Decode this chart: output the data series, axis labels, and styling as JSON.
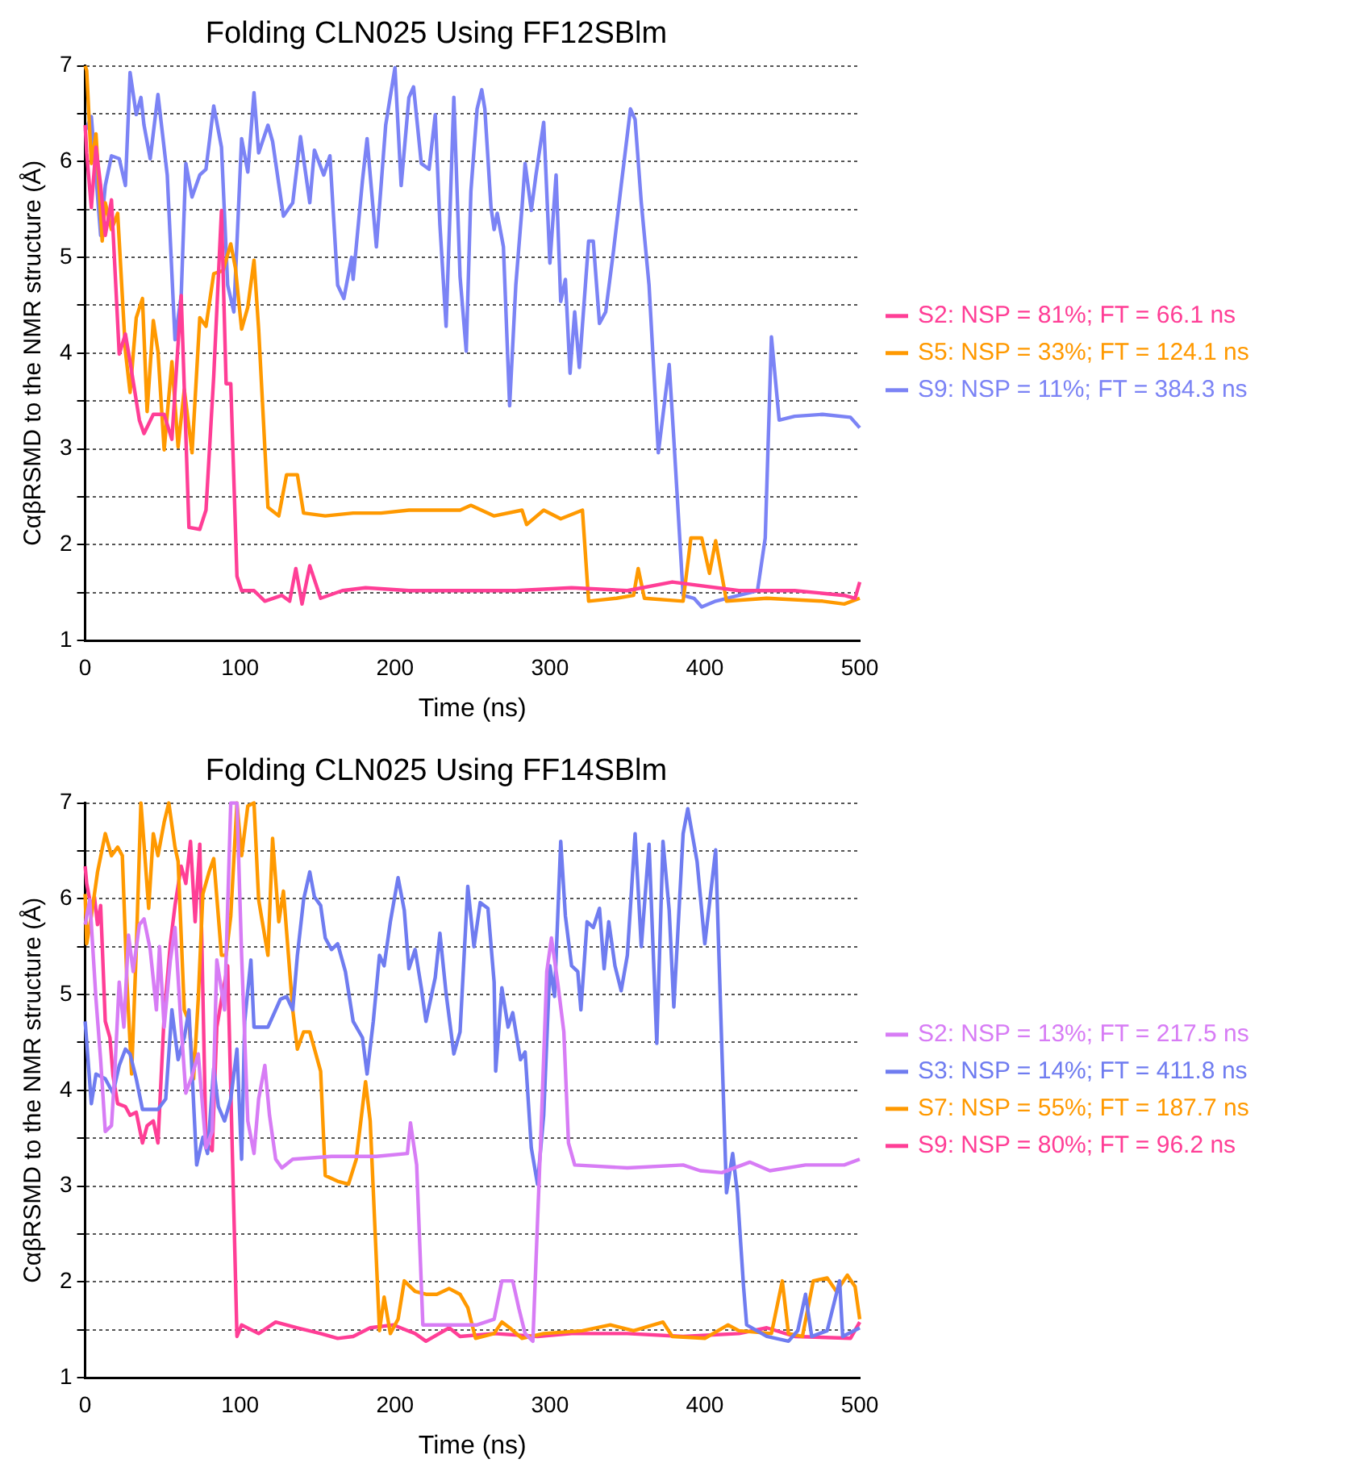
{
  "chart_data": [
    {
      "type": "line",
      "title": "Folding CLN025 Using FF12SBlm",
      "xlabel": "Time (ns)",
      "ylabel": "CαβRSMD to the NMR structure (Å)",
      "xlim": [
        0,
        500
      ],
      "xticks": [
        0,
        100,
        200,
        300,
        400,
        500
      ],
      "ylim": [
        1,
        7
      ],
      "yticks": [
        1,
        {
          "value": 1.5,
          "label": null
        },
        2,
        {
          "value": 2.5,
          "label": null
        },
        3,
        {
          "value": 3.5,
          "label": null
        },
        4,
        {
          "value": 4.5,
          "label": null
        },
        5,
        {
          "value": 5.5,
          "label": null
        },
        6,
        {
          "value": 6.5,
          "label": null
        },
        7
      ],
      "grid": "y",
      "legend": "right",
      "marker": "none",
      "line_style": "solid",
      "series": [
        {
          "name": "S2: NSP = 81%; FT = 66.1 ns",
          "color": "#ff3e96",
          "x": [
            0,
            1,
            4,
            7,
            10,
            13,
            17,
            22,
            26,
            29,
            35,
            38,
            44,
            51,
            56,
            62,
            67,
            74,
            78,
            83,
            88,
            91,
            94,
            98,
            101,
            109,
            116,
            127,
            132,
            136,
            140,
            145,
            152,
            166,
            181,
            209,
            245,
            278,
            314,
            350,
            379,
            422,
            458,
            490,
            497,
            500
          ],
          "values": [
            6.38,
            6.09,
            5.52,
            6.15,
            5.75,
            5.23,
            5.6,
            3.99,
            4.2,
            3.91,
            3.3,
            3.16,
            3.36,
            3.36,
            3.1,
            4.6,
            2.18,
            2.16,
            2.36,
            3.76,
            5.49,
            3.68,
            3.68,
            1.67,
            1.52,
            1.52,
            1.41,
            1.47,
            1.41,
            1.75,
            1.38,
            1.78,
            1.44,
            1.52,
            1.55,
            1.52,
            1.52,
            1.52,
            1.55,
            1.52,
            1.61,
            1.52,
            1.52,
            1.47,
            1.44,
            1.61
          ]
        },
        {
          "name": "S5: NSP = 33%; FT = 124.1 ns",
          "color": "#ff9900",
          "x": [
            0,
            1,
            4,
            7,
            11,
            13,
            17,
            21,
            26,
            29,
            33,
            37,
            40,
            44,
            47,
            51,
            56,
            60,
            64,
            69,
            74,
            78,
            83,
            89,
            94,
            97,
            101,
            105,
            109,
            112,
            118,
            125,
            130,
            137,
            141,
            155,
            173,
            191,
            209,
            227,
            242,
            249,
            264,
            282,
            285,
            296,
            307,
            321,
            325,
            343,
            354,
            357,
            361,
            386,
            391,
            398,
            403,
            407,
            414,
            440,
            476,
            490,
            500
          ],
          "values": [
            7,
            6.95,
            5.98,
            6.29,
            5.17,
            5.57,
            5.29,
            5.46,
            4.02,
            3.59,
            4.37,
            4.57,
            3.39,
            4.34,
            4.02,
            2.99,
            3.91,
            3.02,
            3.62,
            2.96,
            4.37,
            4.28,
            4.83,
            4.86,
            5.14,
            4.89,
            4.25,
            4.48,
            4.97,
            4.25,
            2.39,
            2.3,
            2.73,
            2.73,
            2.33,
            2.3,
            2.33,
            2.33,
            2.36,
            2.36,
            2.36,
            2.41,
            2.3,
            2.36,
            2.21,
            2.36,
            2.27,
            2.36,
            1.41,
            1.44,
            1.47,
            1.75,
            1.44,
            1.41,
            2.07,
            2.07,
            1.7,
            2.04,
            1.41,
            1.44,
            1.41,
            1.38,
            1.44
          ]
        },
        {
          "name": "S9: NSP = 11%; FT = 384.3 ns",
          "color": "#7b83f5",
          "x": [
            0,
            4,
            10,
            13,
            17,
            22,
            26,
            29,
            33,
            36,
            38,
            42,
            47,
            53,
            58,
            62,
            65,
            69,
            74,
            78,
            83,
            88,
            92,
            96,
            101,
            105,
            109,
            112,
            118,
            121,
            128,
            134,
            139,
            145,
            148,
            154,
            158,
            163,
            167,
            172,
            173,
            179,
            182,
            188,
            194,
            200,
            204,
            209,
            212,
            217,
            222,
            226,
            229,
            233,
            238,
            242,
            246,
            249,
            253,
            256,
            258,
            262,
            264,
            266,
            270,
            274,
            278,
            282,
            284,
            288,
            291,
            296,
            300,
            304,
            307,
            310,
            313,
            316,
            319,
            325,
            328,
            332,
            336,
            341,
            346,
            352,
            355,
            359,
            364,
            370,
            377,
            380,
            386,
            393,
            398,
            407,
            422,
            434,
            439,
            443,
            448,
            458,
            476,
            494,
            500
          ],
          "values": [
            6.32,
            6.47,
            5.23,
            5.75,
            6.06,
            6.03,
            5.75,
            6.93,
            6.49,
            6.67,
            6.38,
            6.03,
            6.7,
            5.86,
            4.14,
            4.6,
            5.98,
            5.63,
            5.86,
            5.92,
            6.58,
            6.15,
            4.71,
            4.43,
            6.24,
            5.89,
            6.72,
            6.09,
            6.38,
            6.21,
            5.43,
            5.57,
            6.26,
            5.57,
            6.12,
            5.86,
            6.06,
            4.71,
            4.57,
            5,
            4.77,
            5.8,
            6.24,
            5.11,
            6.38,
            6.98,
            5.75,
            6.67,
            6.78,
            5.98,
            5.92,
            6.49,
            5.34,
            4.28,
            6.67,
            4.8,
            4.02,
            5.69,
            6.55,
            6.75,
            6.55,
            5.52,
            5.29,
            5.46,
            5.11,
            3.45,
            4.71,
            5.52,
            5.98,
            5.49,
            5.86,
            6.41,
            4.94,
            5.86,
            4.54,
            4.77,
            3.79,
            4.43,
            3.85,
            5.17,
            5.17,
            4.31,
            4.43,
            5.06,
            5.75,
            6.55,
            6.44,
            5.57,
            4.71,
            2.96,
            3.88,
            3.1,
            1.47,
            1.44,
            1.35,
            1.41,
            1.47,
            1.52,
            2.07,
            4.17,
            3.3,
            3.34,
            3.36,
            3.33,
            3.22
          ]
        }
      ]
    },
    {
      "type": "line",
      "title": "Folding CLN025 Using FF14SBlm",
      "xlabel": "Time (ns)",
      "ylabel": "CαβRSMD to the NMR structure (Å)",
      "xlim": [
        0,
        500
      ],
      "xticks": [
        0,
        100,
        200,
        300,
        400,
        500
      ],
      "ylim": [
        1,
        7
      ],
      "yticks": [
        1,
        {
          "value": 1.5,
          "label": null
        },
        2,
        {
          "value": 2.5,
          "label": null
        },
        3,
        {
          "value": 3.5,
          "label": null
        },
        4,
        {
          "value": 4.5,
          "label": null
        },
        5,
        {
          "value": 5.5,
          "label": null
        },
        6,
        {
          "value": 6.5,
          "label": null
        },
        7
      ],
      "grid": "y",
      "legend": "right",
      "marker": "none",
      "line_style": "solid",
      "series": [
        {
          "name": "S2: NSP = 13%; FT = 217.5 ns",
          "color": "#d77cf5",
          "x": [
            0,
            3,
            4,
            7,
            10,
            13,
            17,
            19,
            22,
            25,
            28,
            31,
            35,
            38,
            42,
            46,
            48,
            51,
            55,
            58,
            62,
            65,
            69,
            73,
            78,
            82,
            85,
            90,
            94,
            98,
            101,
            105,
            109,
            112,
            116,
            119,
            123,
            127,
            134,
            159,
            188,
            208,
            210,
            214,
            218,
            235,
            242,
            253,
            264,
            269,
            276,
            280,
            284,
            289,
            294,
            298,
            301,
            305,
            309,
            312,
            316,
            350,
            386,
            397,
            411,
            429,
            442,
            465,
            490,
            500
          ],
          "values": [
            5.73,
            5.99,
            5.73,
            4.95,
            4.32,
            3.57,
            3.63,
            4.15,
            5.13,
            4.66,
            5.62,
            5.24,
            5.73,
            5.79,
            5.47,
            4.84,
            5.5,
            4.66,
            5.36,
            5.7,
            4.66,
            3.97,
            4.15,
            4.38,
            3.4,
            3.57,
            5.36,
            4.84,
            7,
            7,
            5.41,
            3.68,
            3.34,
            3.91,
            4.26,
            3.74,
            3.28,
            3.19,
            3.28,
            3.31,
            3.31,
            3.34,
            3.66,
            3.22,
            1.55,
            1.55,
            1.55,
            1.55,
            1.61,
            2.01,
            2.01,
            1.72,
            1.46,
            1.38,
            3.45,
            5.24,
            5.59,
            5.13,
            4.61,
            3.45,
            3.22,
            3.19,
            3.22,
            3.16,
            3.14,
            3.25,
            3.16,
            3.22,
            3.22,
            3.28
          ]
        },
        {
          "name": "S3: NSP = 14%; FT = 411.8 ns",
          "color": "#6f7cf0",
          "x": [
            0,
            4,
            7,
            13,
            18,
            22,
            26,
            29,
            33,
            37,
            47,
            52,
            56,
            60,
            64,
            67,
            72,
            76,
            79,
            83,
            86,
            90,
            94,
            98,
            101,
            103,
            107,
            109,
            118,
            126,
            130,
            134,
            137,
            141,
            145,
            148,
            152,
            155,
            159,
            163,
            168,
            173,
            179,
            182,
            186,
            190,
            193,
            197,
            202,
            206,
            209,
            213,
            217,
            220,
            226,
            229,
            233,
            238,
            242,
            247,
            251,
            255,
            260,
            264,
            265,
            269,
            273,
            276,
            281,
            284,
            288,
            292,
            296,
            300,
            303,
            307,
            310,
            314,
            318,
            320,
            324,
            328,
            332,
            335,
            338,
            342,
            346,
            350,
            355,
            359,
            364,
            369,
            373,
            377,
            380,
            386,
            389,
            395,
            400,
            407,
            411,
            414,
            418,
            421,
            425,
            427,
            440,
            454,
            460,
            465,
            469,
            479,
            487,
            489,
            500
          ],
          "values": [
            4.72,
            3.86,
            4.17,
            4.12,
            3.97,
            4.26,
            4.43,
            4.38,
            4.12,
            3.8,
            3.8,
            3.91,
            4.84,
            4.32,
            4.55,
            4.84,
            3.22,
            3.51,
            3.34,
            4.23,
            3.83,
            3.68,
            3.91,
            4.43,
            3.28,
            4.72,
            5.36,
            4.66,
            4.66,
            4.95,
            4.98,
            4.84,
            5.41,
            5.99,
            6.28,
            6.02,
            5.93,
            5.59,
            5.47,
            5.53,
            5.24,
            4.72,
            4.55,
            4.17,
            4.72,
            5.41,
            5.3,
            5.76,
            6.22,
            5.88,
            5.27,
            5.47,
            5.07,
            4.72,
            5.18,
            5.64,
            5.01,
            4.38,
            4.61,
            6.13,
            5.5,
            5.96,
            5.9,
            5.13,
            4.2,
            5.07,
            4.66,
            4.81,
            4.32,
            4.4,
            3.4,
            3.02,
            3.74,
            5.3,
            4.98,
            6.6,
            5.82,
            5.3,
            5.24,
            4.84,
            5.76,
            5.7,
            5.9,
            5.27,
            5.76,
            5.3,
            5.04,
            5.41,
            6.68,
            5.5,
            6.57,
            4.49,
            6.6,
            5.88,
            4.87,
            6.68,
            6.94,
            6.39,
            5.53,
            6.51,
            4.43,
            2.93,
            3.34,
            2.93,
            1.95,
            1.55,
            1.43,
            1.38,
            1.49,
            1.87,
            1.43,
            1.49,
            2.01,
            1.43,
            1.52
          ]
        },
        {
          "name": "S7: NSP = 55%; FT = 187.7 ns",
          "color": "#ff9900",
          "x": [
            0,
            1,
            4,
            8,
            13,
            17,
            21,
            24,
            27,
            30,
            33,
            36,
            38,
            41,
            44,
            47,
            51,
            54,
            58,
            60,
            64,
            67,
            70,
            73,
            76,
            80,
            83,
            88,
            91,
            94,
            98,
            101,
            105,
            109,
            112,
            118,
            121,
            125,
            128,
            134,
            137,
            141,
            145,
            152,
            155,
            163,
            170,
            175,
            181,
            184,
            190,
            193,
            197,
            202,
            206,
            213,
            220,
            227,
            235,
            242,
            247,
            252,
            264,
            269,
            274,
            282,
            296,
            321,
            339,
            354,
            373,
            379,
            400,
            415,
            422,
            443,
            450,
            454,
            463,
            470,
            479,
            485,
            492,
            497,
            500
          ],
          "values": [
            6.05,
            5.53,
            5.82,
            6.28,
            6.68,
            6.45,
            6.54,
            6.45,
            5.13,
            4.17,
            5.47,
            7,
            6.57,
            5.9,
            6.68,
            6.45,
            6.8,
            7,
            6.54,
            6.39,
            4.84,
            4.72,
            4.12,
            4.95,
            6.05,
            6.28,
            6.42,
            5.41,
            5.41,
            5.82,
            7,
            6.45,
            6.97,
            7,
            5.99,
            5.41,
            6.63,
            5.76,
            6.08,
            4.84,
            4.43,
            4.61,
            4.61,
            4.2,
            3.11,
            3.05,
            3.02,
            3.28,
            4.09,
            3.68,
            1.49,
            1.84,
            1.46,
            1.61,
            2.01,
            1.9,
            1.87,
            1.87,
            1.93,
            1.87,
            1.73,
            1.41,
            1.46,
            1.58,
            1.52,
            1.41,
            1.46,
            1.49,
            1.55,
            1.49,
            1.58,
            1.43,
            1.41,
            1.55,
            1.49,
            1.46,
            2.01,
            1.46,
            1.43,
            2.01,
            2.04,
            1.9,
            2.07,
            1.95,
            1.61
          ]
        },
        {
          "name": "S9: NSP = 80%; FT = 96.2 ns",
          "color": "#ff3e96",
          "x": [
            0,
            1,
            4,
            6,
            8,
            10,
            13,
            16,
            18,
            21,
            26,
            29,
            33,
            37,
            40,
            44,
            47,
            51,
            55,
            58,
            62,
            65,
            68,
            71,
            74,
            78,
            82,
            85,
            89,
            92,
            98,
            101,
            112,
            123,
            137,
            152,
            163,
            173,
            184,
            199,
            213,
            220,
            235,
            242,
            264,
            292,
            314,
            350,
            386,
            422,
            440,
            458,
            494,
            500
          ],
          "values": [
            6.34,
            6.16,
            5.9,
            6.02,
            5.73,
            5.93,
            4.72,
            4.55,
            4.15,
            3.86,
            3.83,
            3.74,
            3.77,
            3.45,
            3.63,
            3.68,
            3.45,
            4.78,
            5.53,
            5.93,
            6.34,
            6.16,
            6.6,
            5.76,
            6.57,
            3.45,
            3.37,
            4.66,
            5.04,
            5.3,
            1.43,
            1.55,
            1.46,
            1.58,
            1.52,
            1.46,
            1.41,
            1.43,
            1.52,
            1.55,
            1.46,
            1.38,
            1.52,
            1.43,
            1.46,
            1.43,
            1.46,
            1.46,
            1.43,
            1.46,
            1.52,
            1.43,
            1.41,
            1.58
          ]
        }
      ]
    }
  ]
}
